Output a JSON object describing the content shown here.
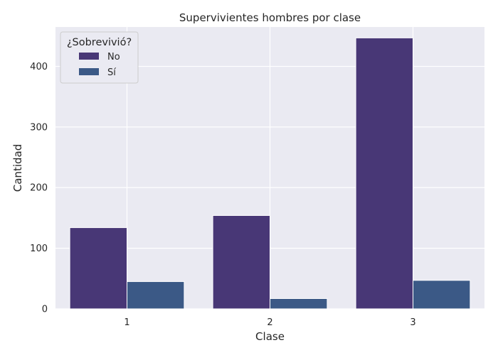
{
  "chart_data": {
    "type": "bar",
    "title": "Supervivientes hombres por clase",
    "xlabel": "Clase",
    "ylabel": "Cantidad",
    "categories": [
      "1",
      "2",
      "3"
    ],
    "series": [
      {
        "name": "No",
        "values": [
          134,
          154,
          447
        ],
        "color": "#483776"
      },
      {
        "name": "Sí",
        "values": [
          45,
          17,
          47
        ],
        "color": "#3b5986"
      }
    ],
    "ylim": [
      0,
      465
    ],
    "yticks": [
      0,
      100,
      200,
      300,
      400
    ],
    "legend": {
      "title": "¿Sobrevivió?",
      "placement": "top-left"
    },
    "grid": true,
    "background": "#eaeaf2"
  }
}
